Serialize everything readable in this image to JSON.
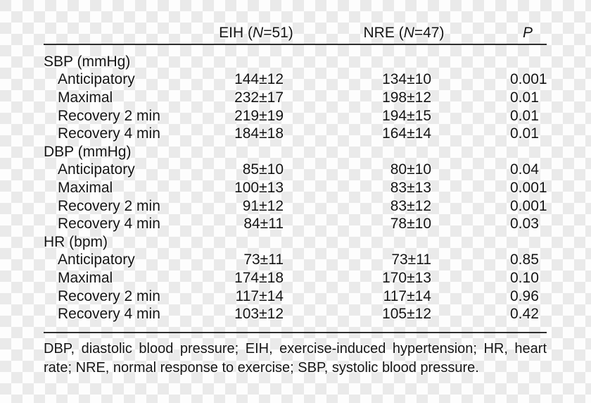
{
  "colors": {
    "text": "#141414",
    "rule": "#2e2e2e",
    "checker_light": "#fdfdfd",
    "checker_gray": "#eaeaea"
  },
  "header": {
    "eih": {
      "pre": "EIH (",
      "n": "N",
      "post": "=51)"
    },
    "nre": {
      "pre": "NRE (",
      "n": "N",
      "post": "=47)"
    },
    "p": "P"
  },
  "rows": [
    {
      "type": "section",
      "label": "SBP (mmHg)"
    },
    {
      "type": "data",
      "label": "Anticipatory",
      "eih": "144±12",
      "nre": "134±10",
      "p": "0.001"
    },
    {
      "type": "data",
      "label": "Maximal",
      "eih": "232±17",
      "nre": "198±12",
      "p": "0.01"
    },
    {
      "type": "data",
      "label": "Recovery 2 min",
      "eih": "219±19",
      "nre": "194±15",
      "p": "0.01"
    },
    {
      "type": "data",
      "label": "Recovery 4 min",
      "eih": "184±18",
      "nre": "164±14",
      "p": "0.01"
    },
    {
      "type": "section",
      "label": "DBP (mmHg)"
    },
    {
      "type": "data",
      "label": "Anticipatory",
      "eih": "85±10",
      "nre": "80±10",
      "p": "0.04"
    },
    {
      "type": "data",
      "label": "Maximal",
      "eih": "100±13",
      "nre": "83±13",
      "p": "0.001"
    },
    {
      "type": "data",
      "label": "Recovery 2 min",
      "eih": "91±12",
      "nre": "83±12",
      "p": "0.001"
    },
    {
      "type": "data",
      "label": "Recovery 4 min",
      "eih": "84±11",
      "nre": "78±10",
      "p": "0.03"
    },
    {
      "type": "section",
      "label": "HR (bpm)"
    },
    {
      "type": "data",
      "label": "Anticipatory",
      "eih": "73±11",
      "nre": "73±11",
      "p": "0.85"
    },
    {
      "type": "data",
      "label": "Maximal",
      "eih": "174±18",
      "nre": "170±13",
      "p": "0.10"
    },
    {
      "type": "data",
      "label": "Recovery 2 min",
      "eih": "117±14",
      "nre": "117±14",
      "p": "0.96"
    },
    {
      "type": "data",
      "label": "Recovery 4 min",
      "eih": "103±12",
      "nre": "105±12",
      "p": "0.42"
    }
  ],
  "footnote": {
    "line1": "DBP, diastolic blood pressure; EIH, exercise-induced hypertension; HR, heart",
    "line2": "rate; NRE, normal response to exercise; SBP, systolic blood pressure."
  }
}
